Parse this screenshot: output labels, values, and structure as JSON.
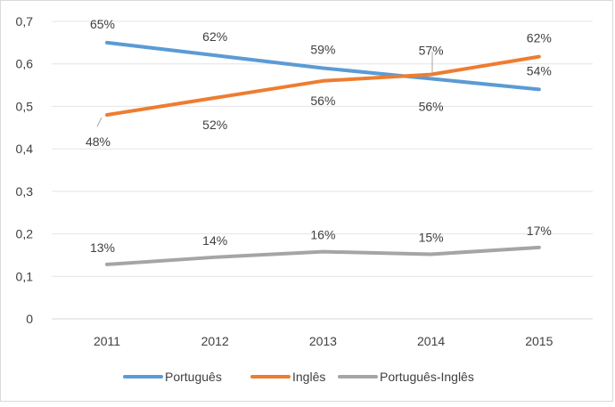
{
  "chart_data": {
    "type": "line",
    "title": "",
    "xlabel": "",
    "ylabel": "",
    "categories": [
      "2011",
      "2012",
      "2013",
      "2014",
      "2015"
    ],
    "ylim": [
      0,
      0.7
    ],
    "y_ticks": [
      "0",
      "0,1",
      "0,2",
      "0,3",
      "0,4",
      "0,5",
      "0,6",
      "0,7"
    ],
    "grid": true,
    "legend_position": "bottom",
    "series": [
      {
        "name": "Português",
        "color": "#5b9bd5",
        "values": [
          0.65,
          0.62,
          0.59,
          0.565,
          0.54
        ],
        "labels": [
          "65%",
          "62%",
          "59%",
          "56%",
          "54%"
        ]
      },
      {
        "name": "Inglês",
        "color": "#ed7d31",
        "values": [
          0.48,
          0.52,
          0.56,
          0.575,
          0.617
        ],
        "labels": [
          "48%",
          "52%",
          "56%",
          "57%",
          "62%"
        ]
      },
      {
        "name": "Português-Inglês",
        "color": "#a5a5a5",
        "values": [
          0.128,
          0.145,
          0.158,
          0.152,
          0.168
        ],
        "labels": [
          "13%",
          "14%",
          "16%",
          "15%",
          "17%"
        ]
      }
    ]
  }
}
